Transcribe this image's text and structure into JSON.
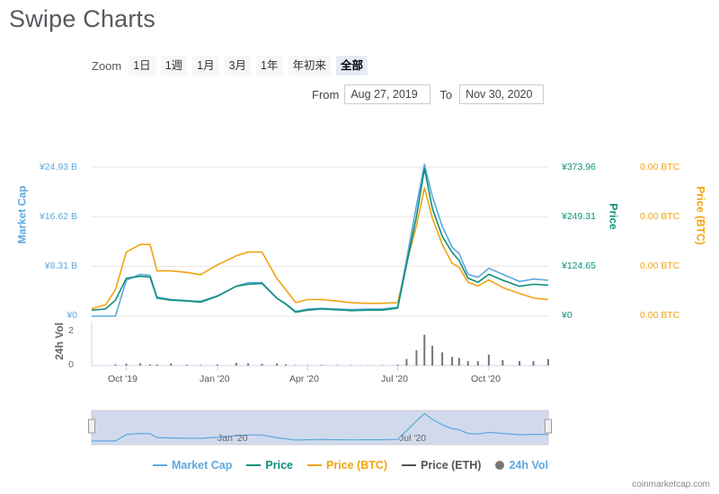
{
  "title": "Swipe Charts",
  "zoom": {
    "label": "Zoom",
    "buttons": [
      "1日",
      "1週",
      "1月",
      "3月",
      "1年",
      "年初来",
      "全部"
    ],
    "active_index": 6
  },
  "range": {
    "from_label": "From",
    "from_value": "Aug 27, 2019",
    "to_label": "To",
    "to_value": "Nov 30, 2020"
  },
  "axes": {
    "market_cap_title": "Market Cap",
    "market_cap_ticks": [
      "¥24.93 B",
      "¥16.62 B",
      "¥8.31 B",
      "¥0"
    ],
    "price_title": "Price",
    "price_ticks": [
      "¥373.96",
      "¥249.31",
      "¥124.65",
      "¥0"
    ],
    "btc_title": "Price (BTC)",
    "btc_ticks": [
      "0.00 BTC",
      "0.00 BTC",
      "0.00 BTC",
      "0.00 BTC"
    ],
    "volume_title": "24h Vol",
    "volume_ticks": [
      "2",
      "0"
    ],
    "x_ticks": [
      "Oct '19",
      "Jan '20",
      "Apr '20",
      "Jul '20",
      "Oct '20"
    ]
  },
  "navigator": {
    "x_ticks": [
      "Jan '20",
      "Jul '20"
    ]
  },
  "legend": {
    "market_cap": "Market Cap",
    "price": "Price",
    "price_btc": "Price (BTC)",
    "price_eth": "Price (ETH)",
    "volume": "24h Vol"
  },
  "credit": "coinmarketcap.com",
  "colors": {
    "market_cap": "#5fa8dc",
    "price": "#0b9079",
    "price_btc": "#f2a30f",
    "price_eth": "#555555",
    "volume": "#777777",
    "market_cap_axis": "#5fa8dc",
    "price_axis": "#0b9079",
    "btc_axis": "#f2a30f"
  },
  "chart_data": {
    "type": "line",
    "x_start": "2019-08-27",
    "x_end": "2020-11-30",
    "x": [
      "2019-08-27",
      "2019-09-10",
      "2019-09-20",
      "2019-10-01",
      "2019-10-15",
      "2019-10-25",
      "2019-11-01",
      "2019-11-15",
      "2019-12-01",
      "2019-12-15",
      "2020-01-01",
      "2020-01-20",
      "2020-02-01",
      "2020-02-15",
      "2020-03-01",
      "2020-03-10",
      "2020-03-20",
      "2020-04-01",
      "2020-04-15",
      "2020-05-01",
      "2020-05-15",
      "2020-06-01",
      "2020-06-15",
      "2020-07-01",
      "2020-07-10",
      "2020-07-20",
      "2020-07-28",
      "2020-08-05",
      "2020-08-15",
      "2020-08-25",
      "2020-09-01",
      "2020-09-10",
      "2020-09-20",
      "2020-10-01",
      "2020-10-15",
      "2020-11-01",
      "2020-11-15",
      "2020-11-30"
    ],
    "series": [
      {
        "name": "Price",
        "axis": "price",
        "values": [
          15,
          18,
          40,
          95,
          100,
          98,
          45,
          40,
          38,
          35,
          50,
          75,
          80,
          82,
          45,
          30,
          10,
          15,
          18,
          16,
          14,
          15,
          15,
          20,
          130,
          250,
          370,
          270,
          200,
          160,
          140,
          95,
          85,
          105,
          90,
          75,
          80,
          78
        ]
      },
      {
        "name": "Market Cap",
        "axis": "market_cap",
        "values": [
          0,
          0,
          0,
          6.0,
          7.0,
          6.8,
          3.2,
          2.8,
          2.6,
          2.5,
          3.4,
          5.0,
          5.6,
          5.6,
          3.0,
          2.1,
          0.8,
          1.2,
          1.3,
          1.2,
          1.1,
          1.2,
          1.2,
          1.5,
          9.5,
          18.5,
          25.4,
          20.0,
          15.0,
          11.5,
          10.5,
          7.0,
          6.5,
          8.0,
          7.0,
          5.8,
          6.2,
          6.0
        ]
      },
      {
        "name": "Price (BTC)",
        "axis": "btc",
        "values": [
          1e-06,
          1.5e-06,
          3.5e-06,
          8.5e-06,
          9.5e-06,
          9.5e-06,
          6e-06,
          6e-06,
          5.8e-06,
          5.5e-06,
          6.8e-06,
          8e-06,
          8.5e-06,
          8.5e-06,
          5e-06,
          3.5e-06,
          1.8e-06,
          2.2e-06,
          2.2e-06,
          2e-06,
          1.8e-06,
          1.7e-06,
          1.7e-06,
          1.8e-06,
          7e-06,
          1.2e-05,
          1.7e-05,
          1.3e-05,
          9.5e-06,
          7e-06,
          6.5e-06,
          4.5e-06,
          4e-06,
          4.8e-06,
          3.8e-06,
          3e-06,
          2.4e-06,
          2.2e-06
        ]
      }
    ],
    "volume": {
      "name": "24h Vol",
      "values": [
        0,
        0,
        0.05,
        0.08,
        0.1,
        0.05,
        0.05,
        0.1,
        0.04,
        0.03,
        0.05,
        0.12,
        0.1,
        0.08,
        0.1,
        0.06,
        0.02,
        0.02,
        0.03,
        0.02,
        0.02,
        0.02,
        0.02,
        0.04,
        0.3,
        0.7,
        1.4,
        0.9,
        0.6,
        0.4,
        0.35,
        0.2,
        0.2,
        0.5,
        0.25,
        0.2,
        0.2,
        0.3
      ]
    },
    "ylim_price": [
      0,
      373.96
    ],
    "ylim_market_cap_billion": [
      0,
      24.93
    ],
    "legend_position": "bottom",
    "grid": true
  }
}
